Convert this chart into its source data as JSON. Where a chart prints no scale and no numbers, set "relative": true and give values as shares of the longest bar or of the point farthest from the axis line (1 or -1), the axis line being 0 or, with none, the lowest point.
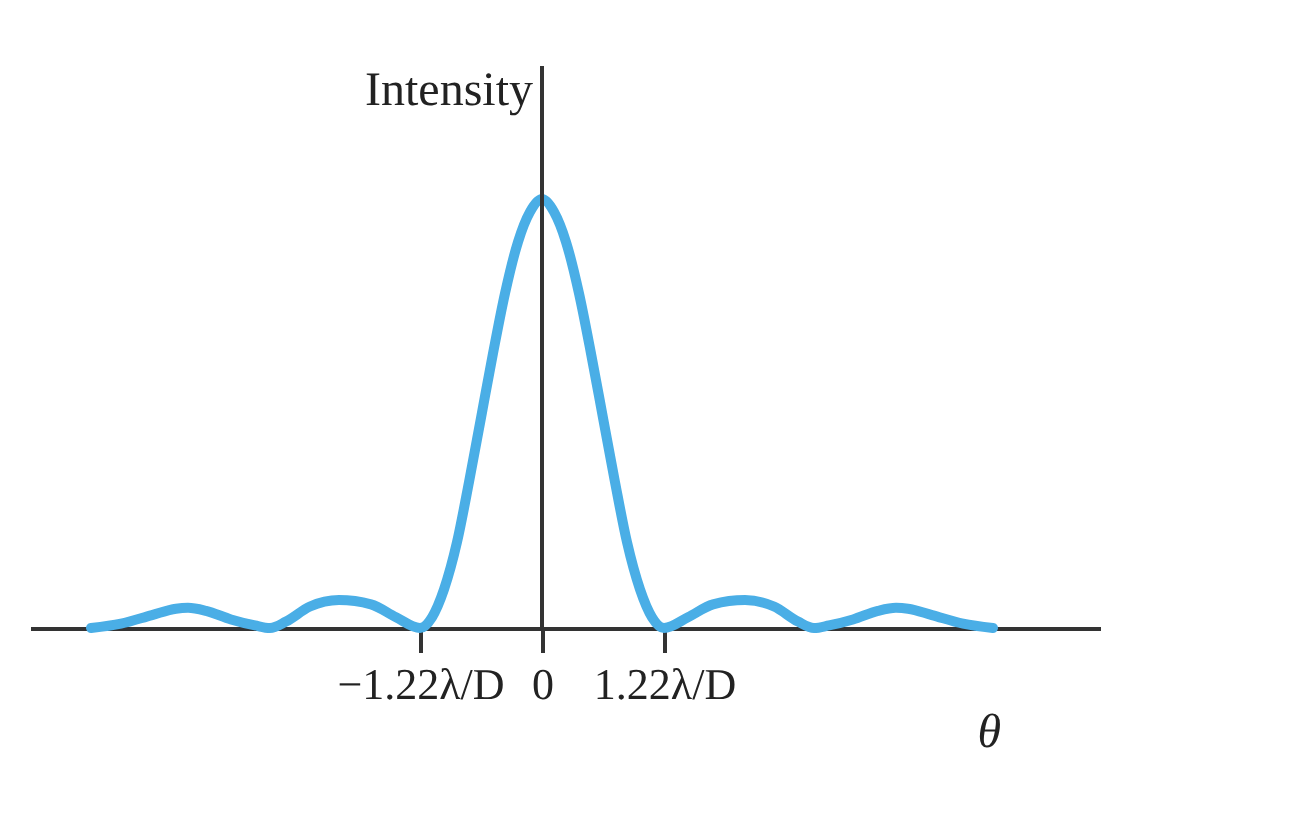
{
  "chart_data": {
    "type": "line",
    "relative": true,
    "xlabel": "θ",
    "ylabel": "Intensity",
    "x": [
      -4.51,
      -4.21,
      -3.9,
      -3.66,
      -3.54,
      -3.36,
      -3.11,
      -2.87,
      -2.72,
      -2.56,
      -2.32,
      -2.03,
      -1.71,
      -1.46,
      -1.22,
      -1.1,
      -0.98,
      -0.85,
      -0.73,
      -0.61,
      -0.49,
      -0.37,
      -0.24,
      -0.12,
      0,
      0.12,
      0.24,
      0.37,
      0.49,
      0.61,
      0.73,
      0.85,
      0.98,
      1.1,
      1.22,
      1.46,
      1.71,
      2.03,
      2.32,
      2.56,
      2.72,
      2.87,
      3.11,
      3.36,
      3.54,
      3.66,
      3.9,
      4.21,
      4.51
    ],
    "series": [
      {
        "color": "#4aaee6",
        "values": [
          0,
          0.01,
          0.03,
          0.045,
          0.047,
          0.04,
          0.02,
          0.006,
          0,
          0.015,
          0.05,
          0.065,
          0.055,
          0.025,
          0,
          0.025,
          0.09,
          0.2,
          0.34,
          0.49,
          0.64,
          0.78,
          0.9,
          0.97,
          1,
          0.97,
          0.9,
          0.78,
          0.64,
          0.49,
          0.34,
          0.2,
          0.09,
          0.025,
          0,
          0.025,
          0.055,
          0.065,
          0.05,
          0.015,
          0,
          0.006,
          0.02,
          0.04,
          0.047,
          0.045,
          0.03,
          0.01,
          0
        ]
      }
    ],
    "xlim": [
      -5.12,
      5.58
    ],
    "xticks": [
      {
        "value": -1.22,
        "label": "−1.22λ/D"
      },
      0,
      {
        "value": 1.22,
        "label": "1.22λ/D"
      }
    ],
    "ref_lines": [
      {
        "axis": "x",
        "value": 0
      }
    ],
    "grid": false,
    "legend": false,
    "marker": "none",
    "line_style": "solid"
  }
}
